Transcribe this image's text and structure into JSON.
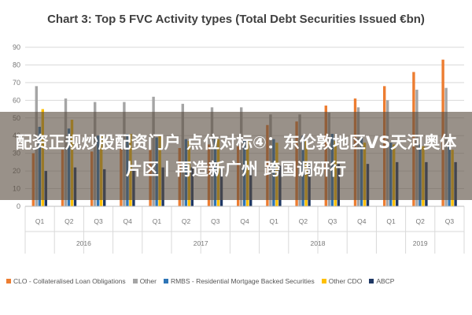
{
  "chart_data": {
    "type": "bar",
    "title": "Chart 3: Top 5 FVC Activity types (Total Debt Securities Issued €bn)",
    "ylim": [
      0,
      90
    ],
    "yticks": [
      0,
      10,
      20,
      30,
      40,
      50,
      60,
      70,
      80,
      90
    ],
    "grid": true,
    "legend_position": "bottom",
    "categories": [
      "Q1",
      "Q2",
      "Q3",
      "Q4",
      "Q1",
      "Q2",
      "Q3",
      "Q4",
      "Q1",
      "Q2",
      "Q3",
      "Q4",
      "Q1",
      "Q2",
      "Q3"
    ],
    "year_groups": [
      {
        "label": "2016",
        "count": 4
      },
      {
        "label": "2017",
        "count": 4
      },
      {
        "label": "2018",
        "count": 4
      },
      {
        "label": "2019",
        "count": 3
      }
    ],
    "series": [
      {
        "name": "CLO - Collateralised Loan Obligations",
        "color": "#ed7d31",
        "values": [
          30,
          32,
          31,
          33,
          32,
          33,
          35,
          34,
          46,
          48,
          57,
          61,
          68,
          76,
          83
        ]
      },
      {
        "name": "Other",
        "color": "#a5a5a5",
        "values": [
          68,
          61,
          59,
          59,
          62,
          58,
          56,
          56,
          52,
          52,
          53,
          56,
          60,
          66,
          67
        ]
      },
      {
        "name": "RMBS - Residential Mortgage Backed Securities",
        "color": "#2e75b6",
        "values": [
          45,
          44,
          40,
          41,
          39,
          38,
          38,
          38,
          38,
          40,
          41,
          39,
          36,
          35,
          34
        ]
      },
      {
        "name": "Other CDO",
        "color": "#ffc000",
        "values": [
          55,
          49,
          40,
          41,
          40,
          37,
          38,
          37,
          36,
          38,
          37,
          36,
          35,
          34,
          32
        ]
      },
      {
        "name": "ABCP",
        "color": "#1f3864",
        "values": [
          20,
          22,
          21,
          21,
          22,
          22,
          21,
          22,
          23,
          24,
          24,
          24,
          25,
          25,
          25
        ]
      }
    ]
  },
  "overlay": {
    "text": "配资正规炒股配资门户 点位对标④：东伦敦地区VS天河奥体片区丨再造新广州 跨国调研行"
  }
}
